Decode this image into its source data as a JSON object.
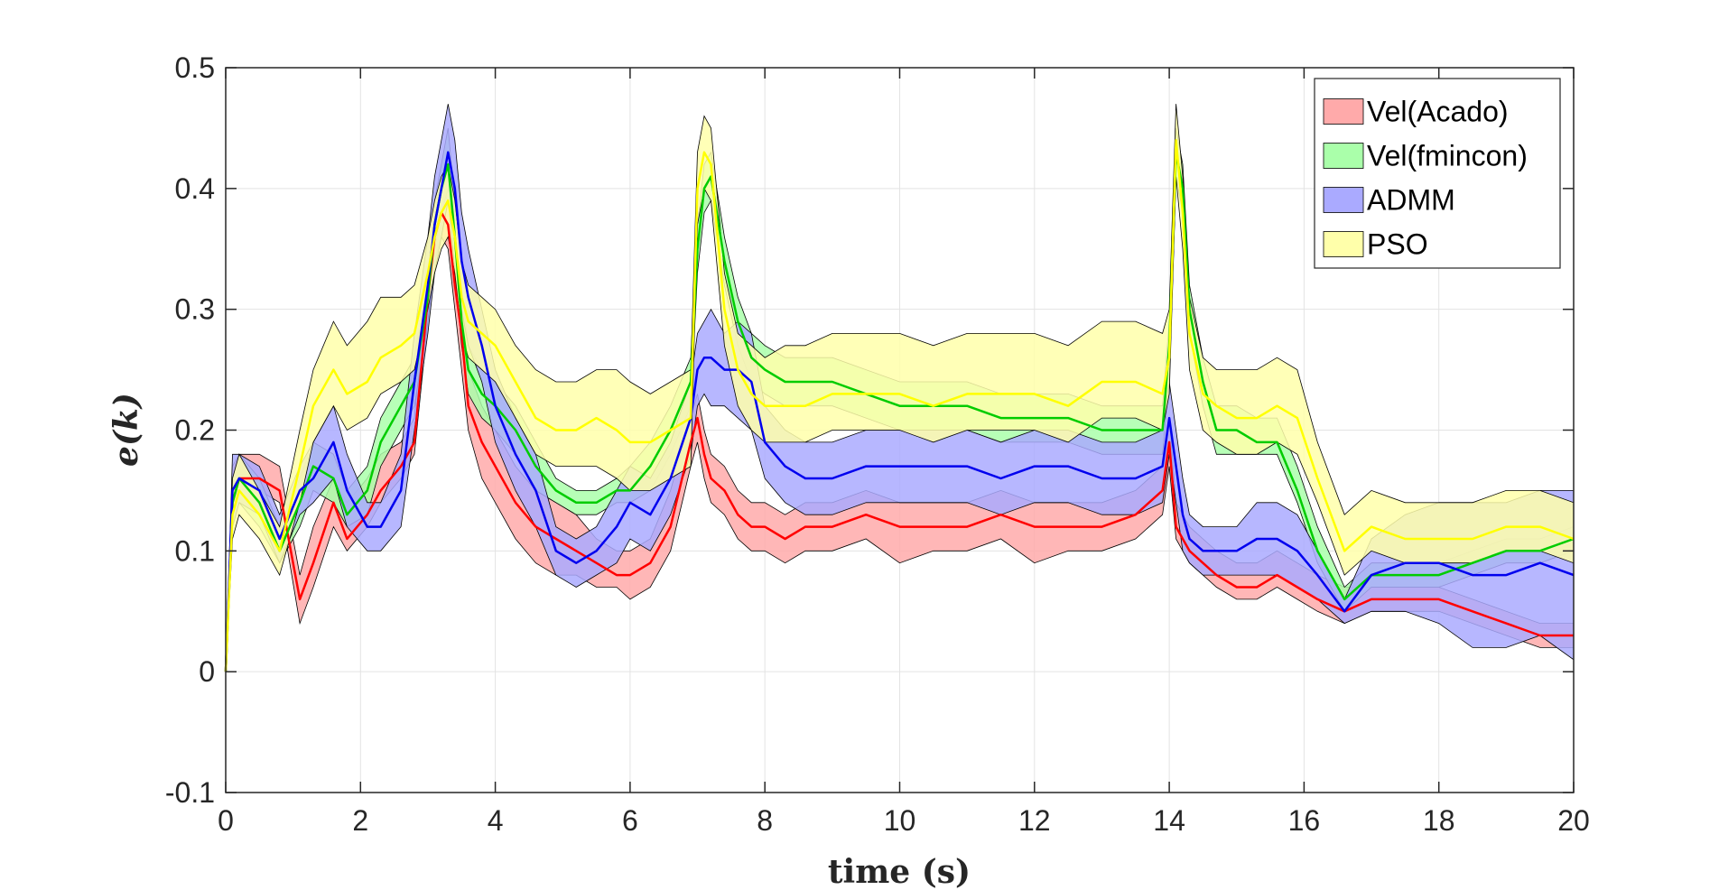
{
  "chart_data": {
    "type": "area",
    "xlabel": "time (s)",
    "ylabel": "e(k)",
    "xlim": [
      0,
      20
    ],
    "ylim": [
      -0.1,
      0.5
    ],
    "xticks": [
      "0",
      "2",
      "4",
      "6",
      "8",
      "10",
      "12",
      "14",
      "16",
      "18",
      "20"
    ],
    "yticks": [
      "-0.1",
      "0",
      "0.1",
      "0.2",
      "0.3",
      "0.4",
      "0.5"
    ],
    "grid": true,
    "legend_position": "top-right",
    "x": [
      0,
      0.1,
      0.2,
      0.5,
      0.8,
      1.1,
      1.3,
      1.6,
      1.8,
      2.1,
      2.3,
      2.6,
      2.8,
      3.0,
      3.1,
      3.2,
      3.3,
      3.4,
      3.5,
      3.6,
      3.8,
      4.0,
      4.3,
      4.6,
      4.9,
      5.2,
      5.5,
      5.8,
      6.0,
      6.3,
      6.6,
      6.9,
      7.0,
      7.1,
      7.2,
      7.4,
      7.6,
      7.8,
      8.0,
      8.3,
      8.6,
      9.0,
      9.5,
      10.0,
      10.5,
      11.0,
      11.5,
      12.0,
      12.5,
      13.0,
      13.5,
      13.9,
      14.0,
      14.1,
      14.2,
      14.3,
      14.5,
      14.7,
      15.0,
      15.3,
      15.6,
      15.9,
      16.2,
      16.6,
      17.0,
      17.5,
      18.0,
      18.5,
      19.0,
      19.5,
      20.0
    ],
    "series": [
      {
        "name": "Vel(Acado)",
        "fill": "#ffaaaa",
        "line": "#ff0000",
        "mean": [
          0.0,
          0.14,
          0.16,
          0.16,
          0.15,
          0.06,
          0.09,
          0.14,
          0.11,
          0.13,
          0.15,
          0.17,
          0.19,
          0.31,
          0.36,
          0.38,
          0.37,
          0.32,
          0.28,
          0.22,
          0.19,
          0.17,
          0.14,
          0.12,
          0.11,
          0.1,
          0.09,
          0.08,
          0.08,
          0.09,
          0.12,
          0.19,
          0.21,
          0.18,
          0.16,
          0.15,
          0.13,
          0.12,
          0.12,
          0.11,
          0.12,
          0.12,
          0.13,
          0.12,
          0.12,
          0.12,
          0.13,
          0.12,
          0.12,
          0.12,
          0.13,
          0.15,
          0.19,
          0.12,
          0.11,
          0.1,
          0.09,
          0.08,
          0.07,
          0.07,
          0.08,
          0.07,
          0.06,
          0.05,
          0.06,
          0.06,
          0.06,
          0.05,
          0.04,
          0.03,
          0.03
        ],
        "lower": [
          0.0,
          0.12,
          0.15,
          0.15,
          0.14,
          0.04,
          0.07,
          0.12,
          0.1,
          0.12,
          0.14,
          0.16,
          0.18,
          0.29,
          0.34,
          0.36,
          0.35,
          0.3,
          0.25,
          0.2,
          0.16,
          0.14,
          0.11,
          0.09,
          0.08,
          0.08,
          0.07,
          0.07,
          0.06,
          0.07,
          0.1,
          0.17,
          0.19,
          0.16,
          0.14,
          0.13,
          0.11,
          0.1,
          0.1,
          0.09,
          0.1,
          0.1,
          0.11,
          0.09,
          0.1,
          0.1,
          0.11,
          0.09,
          0.1,
          0.1,
          0.11,
          0.13,
          0.17,
          0.11,
          0.1,
          0.09,
          0.08,
          0.07,
          0.06,
          0.06,
          0.07,
          0.06,
          0.05,
          0.04,
          0.05,
          0.05,
          0.05,
          0.04,
          0.03,
          0.02,
          0.02
        ],
        "upper": [
          0.0,
          0.17,
          0.18,
          0.18,
          0.17,
          0.08,
          0.12,
          0.16,
          0.14,
          0.16,
          0.18,
          0.19,
          0.21,
          0.33,
          0.38,
          0.4,
          0.39,
          0.34,
          0.31,
          0.25,
          0.22,
          0.2,
          0.17,
          0.15,
          0.14,
          0.13,
          0.11,
          0.1,
          0.1,
          0.11,
          0.15,
          0.21,
          0.23,
          0.2,
          0.18,
          0.17,
          0.15,
          0.14,
          0.14,
          0.13,
          0.14,
          0.14,
          0.15,
          0.14,
          0.14,
          0.14,
          0.15,
          0.14,
          0.14,
          0.14,
          0.15,
          0.17,
          0.21,
          0.14,
          0.13,
          0.12,
          0.11,
          0.1,
          0.09,
          0.09,
          0.1,
          0.09,
          0.08,
          0.07,
          0.07,
          0.07,
          0.07,
          0.06,
          0.05,
          0.04,
          0.04
        ]
      },
      {
        "name": "Vel(fmincon)",
        "fill": "#aaffaa",
        "line": "#00cc00",
        "mean": [
          0.0,
          0.14,
          0.16,
          0.14,
          0.1,
          0.14,
          0.17,
          0.16,
          0.13,
          0.15,
          0.19,
          0.22,
          0.24,
          0.31,
          0.37,
          0.4,
          0.42,
          0.36,
          0.29,
          0.25,
          0.23,
          0.22,
          0.2,
          0.17,
          0.15,
          0.14,
          0.14,
          0.15,
          0.15,
          0.17,
          0.2,
          0.24,
          0.35,
          0.4,
          0.41,
          0.34,
          0.29,
          0.26,
          0.25,
          0.24,
          0.24,
          0.24,
          0.23,
          0.22,
          0.22,
          0.22,
          0.21,
          0.21,
          0.21,
          0.2,
          0.2,
          0.2,
          0.27,
          0.43,
          0.4,
          0.3,
          0.24,
          0.2,
          0.2,
          0.19,
          0.19,
          0.15,
          0.1,
          0.06,
          0.08,
          0.08,
          0.08,
          0.09,
          0.1,
          0.1,
          0.11
        ],
        "lower": [
          0.0,
          0.12,
          0.14,
          0.12,
          0.09,
          0.12,
          0.15,
          0.14,
          0.12,
          0.13,
          0.17,
          0.2,
          0.22,
          0.29,
          0.35,
          0.38,
          0.4,
          0.33,
          0.27,
          0.23,
          0.21,
          0.2,
          0.18,
          0.15,
          0.14,
          0.13,
          0.13,
          0.14,
          0.14,
          0.15,
          0.18,
          0.22,
          0.33,
          0.38,
          0.39,
          0.32,
          0.27,
          0.24,
          0.23,
          0.22,
          0.22,
          0.22,
          0.21,
          0.2,
          0.2,
          0.2,
          0.19,
          0.19,
          0.19,
          0.18,
          0.18,
          0.18,
          0.24,
          0.41,
          0.38,
          0.28,
          0.22,
          0.18,
          0.18,
          0.18,
          0.18,
          0.14,
          0.09,
          0.05,
          0.07,
          0.07,
          0.07,
          0.08,
          0.09,
          0.09,
          0.1
        ],
        "upper": [
          0.0,
          0.16,
          0.18,
          0.16,
          0.12,
          0.16,
          0.19,
          0.18,
          0.15,
          0.17,
          0.21,
          0.24,
          0.26,
          0.33,
          0.39,
          0.42,
          0.45,
          0.39,
          0.32,
          0.27,
          0.25,
          0.24,
          0.22,
          0.19,
          0.16,
          0.15,
          0.15,
          0.16,
          0.17,
          0.19,
          0.22,
          0.26,
          0.37,
          0.42,
          0.43,
          0.36,
          0.31,
          0.28,
          0.27,
          0.26,
          0.26,
          0.26,
          0.25,
          0.24,
          0.24,
          0.24,
          0.23,
          0.23,
          0.23,
          0.22,
          0.22,
          0.22,
          0.29,
          0.45,
          0.42,
          0.32,
          0.26,
          0.22,
          0.22,
          0.21,
          0.21,
          0.17,
          0.12,
          0.07,
          0.09,
          0.09,
          0.09,
          0.1,
          0.11,
          0.11,
          0.12
        ]
      },
      {
        "name": "ADMM",
        "fill": "#aaaaff",
        "line": "#0000ee",
        "mean": [
          0.0,
          0.15,
          0.16,
          0.15,
          0.11,
          0.15,
          0.16,
          0.19,
          0.15,
          0.12,
          0.12,
          0.15,
          0.24,
          0.32,
          0.37,
          0.4,
          0.43,
          0.4,
          0.34,
          0.31,
          0.27,
          0.22,
          0.18,
          0.15,
          0.1,
          0.09,
          0.1,
          0.12,
          0.14,
          0.13,
          0.16,
          0.21,
          0.25,
          0.26,
          0.26,
          0.25,
          0.25,
          0.24,
          0.19,
          0.17,
          0.16,
          0.16,
          0.17,
          0.17,
          0.17,
          0.17,
          0.16,
          0.17,
          0.17,
          0.16,
          0.16,
          0.17,
          0.21,
          0.17,
          0.13,
          0.11,
          0.1,
          0.1,
          0.1,
          0.11,
          0.11,
          0.1,
          0.08,
          0.05,
          0.08,
          0.09,
          0.09,
          0.08,
          0.08,
          0.09,
          0.08
        ],
        "lower": [
          0.0,
          0.12,
          0.14,
          0.13,
          0.09,
          0.13,
          0.14,
          0.16,
          0.12,
          0.1,
          0.1,
          0.12,
          0.2,
          0.28,
          0.33,
          0.36,
          0.39,
          0.36,
          0.3,
          0.27,
          0.24,
          0.19,
          0.15,
          0.12,
          0.08,
          0.07,
          0.08,
          0.09,
          0.11,
          0.1,
          0.13,
          0.18,
          0.22,
          0.23,
          0.22,
          0.22,
          0.21,
          0.2,
          0.16,
          0.14,
          0.13,
          0.13,
          0.14,
          0.14,
          0.14,
          0.14,
          0.13,
          0.14,
          0.14,
          0.13,
          0.13,
          0.14,
          0.18,
          0.14,
          0.1,
          0.09,
          0.08,
          0.08,
          0.08,
          0.08,
          0.08,
          0.07,
          0.06,
          0.04,
          0.05,
          0.05,
          0.04,
          0.02,
          0.02,
          0.03,
          0.01
        ],
        "upper": [
          0.0,
          0.18,
          0.18,
          0.17,
          0.13,
          0.17,
          0.19,
          0.22,
          0.18,
          0.14,
          0.14,
          0.18,
          0.28,
          0.36,
          0.41,
          0.44,
          0.47,
          0.44,
          0.38,
          0.35,
          0.3,
          0.25,
          0.21,
          0.18,
          0.12,
          0.11,
          0.12,
          0.15,
          0.17,
          0.16,
          0.19,
          0.24,
          0.28,
          0.29,
          0.3,
          0.28,
          0.29,
          0.28,
          0.22,
          0.2,
          0.19,
          0.19,
          0.2,
          0.2,
          0.2,
          0.2,
          0.19,
          0.2,
          0.2,
          0.19,
          0.19,
          0.2,
          0.24,
          0.2,
          0.16,
          0.13,
          0.12,
          0.12,
          0.12,
          0.14,
          0.14,
          0.13,
          0.1,
          0.06,
          0.11,
          0.13,
          0.14,
          0.14,
          0.14,
          0.15,
          0.15
        ]
      },
      {
        "name": "PSO",
        "fill": "#ffffaa",
        "line": "#ffff00",
        "mean": [
          0.0,
          0.13,
          0.15,
          0.13,
          0.1,
          0.17,
          0.22,
          0.25,
          0.23,
          0.24,
          0.26,
          0.27,
          0.28,
          0.33,
          0.36,
          0.38,
          0.39,
          0.36,
          0.31,
          0.29,
          0.28,
          0.27,
          0.24,
          0.21,
          0.2,
          0.2,
          0.21,
          0.2,
          0.19,
          0.19,
          0.2,
          0.21,
          0.4,
          0.43,
          0.42,
          0.3,
          0.25,
          0.23,
          0.22,
          0.22,
          0.22,
          0.23,
          0.23,
          0.23,
          0.22,
          0.23,
          0.23,
          0.23,
          0.22,
          0.24,
          0.24,
          0.23,
          0.26,
          0.44,
          0.38,
          0.28,
          0.23,
          0.22,
          0.21,
          0.21,
          0.22,
          0.21,
          0.16,
          0.1,
          0.12,
          0.11,
          0.11,
          0.11,
          0.12,
          0.12,
          0.11
        ],
        "lower": [
          0.0,
          0.11,
          0.13,
          0.11,
          0.08,
          0.14,
          0.19,
          0.22,
          0.2,
          0.21,
          0.23,
          0.24,
          0.25,
          0.3,
          0.33,
          0.35,
          0.36,
          0.33,
          0.28,
          0.26,
          0.25,
          0.24,
          0.21,
          0.18,
          0.17,
          0.17,
          0.17,
          0.16,
          0.15,
          0.15,
          0.16,
          0.17,
          0.37,
          0.4,
          0.39,
          0.27,
          0.22,
          0.2,
          0.19,
          0.19,
          0.19,
          0.2,
          0.2,
          0.2,
          0.19,
          0.2,
          0.2,
          0.2,
          0.19,
          0.21,
          0.21,
          0.2,
          0.23,
          0.41,
          0.35,
          0.25,
          0.2,
          0.19,
          0.18,
          0.18,
          0.19,
          0.18,
          0.14,
          0.08,
          0.1,
          0.09,
          0.09,
          0.09,
          0.1,
          0.1,
          0.09
        ],
        "upper": [
          0.0,
          0.16,
          0.18,
          0.15,
          0.12,
          0.2,
          0.25,
          0.29,
          0.27,
          0.29,
          0.31,
          0.31,
          0.32,
          0.36,
          0.39,
          0.41,
          0.42,
          0.39,
          0.34,
          0.32,
          0.31,
          0.3,
          0.27,
          0.25,
          0.24,
          0.24,
          0.25,
          0.25,
          0.24,
          0.23,
          0.24,
          0.25,
          0.43,
          0.46,
          0.45,
          0.33,
          0.28,
          0.27,
          0.26,
          0.27,
          0.27,
          0.28,
          0.28,
          0.28,
          0.27,
          0.28,
          0.28,
          0.28,
          0.27,
          0.29,
          0.29,
          0.28,
          0.3,
          0.47,
          0.41,
          0.31,
          0.26,
          0.25,
          0.25,
          0.25,
          0.26,
          0.25,
          0.19,
          0.13,
          0.15,
          0.14,
          0.14,
          0.14,
          0.15,
          0.15,
          0.14
        ]
      }
    ]
  }
}
